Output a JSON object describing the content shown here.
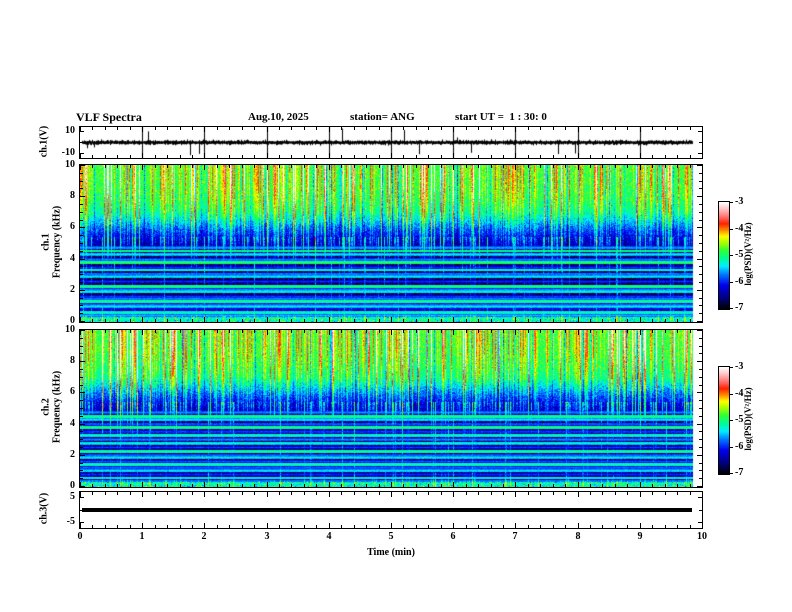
{
  "header": {
    "title": "VLF Spectra",
    "date": "Aug.10, 2025",
    "station": "station= ANG",
    "start_ut": "start UT =  1 : 30: 0"
  },
  "xaxis": {
    "label": "Time (min)",
    "range": [
      0,
      10
    ],
    "major_ticks": [
      0,
      1,
      2,
      3,
      4,
      5,
      6,
      7,
      8,
      9,
      10
    ],
    "minor_step": 0.2,
    "data_end_min": 9.85
  },
  "colorbar": {
    "label": "log(PSD)(V²/Hz)",
    "ticks": [
      -3,
      -4,
      -5,
      -6,
      -7
    ],
    "range": [
      -7,
      -3
    ]
  },
  "colormap": {
    "stops": [
      [
        0.0,
        "#000006"
      ],
      [
        0.1,
        "#000080"
      ],
      [
        0.22,
        "#0000ee"
      ],
      [
        0.32,
        "#0077ff"
      ],
      [
        0.4,
        "#00eeff"
      ],
      [
        0.48,
        "#00ff88"
      ],
      [
        0.55,
        "#33ff33"
      ],
      [
        0.62,
        "#aaff00"
      ],
      [
        0.68,
        "#ffff00"
      ],
      [
        0.74,
        "#ff8800"
      ],
      [
        0.8,
        "#ff2200"
      ],
      [
        0.87,
        "#ff7777"
      ],
      [
        0.93,
        "#ffbbbb"
      ],
      [
        1.0,
        "#ffffff"
      ]
    ]
  },
  "chart_data": [
    {
      "type": "line",
      "name": "ch1-voltage-waveform",
      "ylabel": "ch.1(V)",
      "ylim": [
        -14,
        14
      ],
      "yticks": [
        10,
        -10
      ],
      "grid_minutes": [
        1,
        2,
        3,
        4,
        5,
        6,
        7,
        8,
        9
      ],
      "description": "broadband noise around 0 V with impulsive spikes",
      "noise_v": 1.0,
      "spike_prob": 0.022,
      "seed": 7
    },
    {
      "type": "heatmap",
      "name": "ch1-spectrogram",
      "ylabel_line1": "ch.1",
      "ylabel_line2": "Frequency (kHz)",
      "ylim": [
        0,
        10
      ],
      "yticks_major": [
        0,
        2,
        4,
        6,
        8,
        10
      ],
      "ytick_minor_step": 0.5,
      "value_range": [
        -7,
        -3
      ],
      "seed": 101,
      "left_boost": 1.0,
      "profile": [
        [
          0,
          -5.7
        ],
        [
          0.2,
          -5.4
        ],
        [
          0.45,
          -6.6
        ],
        [
          1,
          -6.85
        ],
        [
          2,
          -6.9
        ],
        [
          2.9,
          -6.85
        ],
        [
          3.3,
          -6.6
        ],
        [
          3.9,
          -6.8
        ],
        [
          4.6,
          -6.55
        ],
        [
          5,
          -6.35
        ],
        [
          5.5,
          -6.1
        ],
        [
          6,
          -5.8
        ],
        [
          6.5,
          -5.45
        ],
        [
          7,
          -5.15
        ],
        [
          7.7,
          -4.95
        ],
        [
          8.5,
          -4.85
        ],
        [
          10,
          -4.8
        ]
      ],
      "hlines": [
        [
          4.72,
          -5.5
        ],
        [
          4.52,
          -4.9
        ],
        [
          4.3,
          -5.3
        ],
        [
          3.95,
          -5.6
        ],
        [
          3.76,
          -4.8
        ],
        [
          3.45,
          -5.9
        ],
        [
          3.3,
          -5.1
        ],
        [
          3.05,
          -5.6
        ],
        [
          2.87,
          -5.3
        ],
        [
          2.55,
          -5.9
        ],
        [
          2.23,
          -4.9
        ],
        [
          2.05,
          -5.7
        ],
        [
          1.91,
          -5.2
        ],
        [
          1.6,
          -5.9
        ],
        [
          1.45,
          -5.6
        ],
        [
          1.27,
          -4.9
        ],
        [
          1.1,
          -5.8
        ],
        [
          0.96,
          -5.3
        ],
        [
          0.8,
          -6.0
        ],
        [
          0.57,
          -5.1
        ],
        [
          0.38,
          -5.5
        ]
      ],
      "streaks": {
        "strong_cum": 0.1,
        "strong": [
          1.2,
          2.5
        ],
        "med_cum": 0.28,
        "med": [
          0.5,
          1.1
        ],
        "weak_cum": 0.42,
        "weak": [
          0.25,
          0.55
        ],
        "neg_above": 0.92,
        "low_cum": 0.13,
        "low": [
          0.55,
          1.35
        ]
      }
    },
    {
      "type": "heatmap",
      "name": "ch2-spectrogram",
      "ylabel_line1": "ch.2",
      "ylabel_line2": "Frequency (kHz)",
      "ylim": [
        0,
        10
      ],
      "yticks_major": [
        0,
        2,
        4,
        6,
        8,
        10
      ],
      "ytick_minor_step": 0.5,
      "value_range": [
        -7,
        -3
      ],
      "seed": 202,
      "left_boost": 1.3,
      "profile": [
        [
          0,
          -5.7
        ],
        [
          0.2,
          -5.4
        ],
        [
          0.45,
          -6.6
        ],
        [
          1,
          -6.85
        ],
        [
          2,
          -6.9
        ],
        [
          2.9,
          -6.85
        ],
        [
          3.3,
          -6.6
        ],
        [
          3.9,
          -6.8
        ],
        [
          4.6,
          -6.55
        ],
        [
          5,
          -6.3
        ],
        [
          5.5,
          -6.05
        ],
        [
          6,
          -5.75
        ],
        [
          6.5,
          -5.4
        ],
        [
          7,
          -5.1
        ],
        [
          7.7,
          -4.95
        ],
        [
          8.5,
          -4.85
        ],
        [
          10,
          -4.8
        ]
      ],
      "hlines": [
        [
          4.75,
          -5.6
        ],
        [
          4.5,
          -4.9
        ],
        [
          4.28,
          -5.3
        ],
        [
          4.0,
          -5.7
        ],
        [
          3.78,
          -4.9
        ],
        [
          3.5,
          -5.8
        ],
        [
          3.28,
          -5.1
        ],
        [
          3.0,
          -5.6
        ],
        [
          2.78,
          -5.2
        ],
        [
          2.5,
          -5.9
        ],
        [
          2.25,
          -5.0
        ],
        [
          2.0,
          -5.7
        ],
        [
          1.85,
          -5.3
        ],
        [
          1.6,
          -5.8
        ],
        [
          1.42,
          -5.0
        ],
        [
          1.2,
          -5.7
        ],
        [
          1.0,
          -5.3
        ],
        [
          0.78,
          -5.9
        ],
        [
          0.55,
          -5.2
        ],
        [
          0.35,
          -5.6
        ]
      ],
      "streaks": {
        "strong_cum": 0.12,
        "strong": [
          1.2,
          2.6
        ],
        "med_cum": 0.3,
        "med": [
          0.5,
          1.1
        ],
        "weak_cum": 0.44,
        "weak": [
          0.25,
          0.55
        ],
        "neg_above": 0.92,
        "low_cum": 0.13,
        "low": [
          0.55,
          1.35
        ]
      }
    },
    {
      "type": "line",
      "name": "ch3-voltage-flat",
      "ylabel": "ch.3(V)",
      "ylim": [
        -7,
        7
      ],
      "yticks": [
        5,
        -5
      ],
      "flat_value": 0,
      "description": "constant 0 V thick trace",
      "seed": 1
    }
  ]
}
